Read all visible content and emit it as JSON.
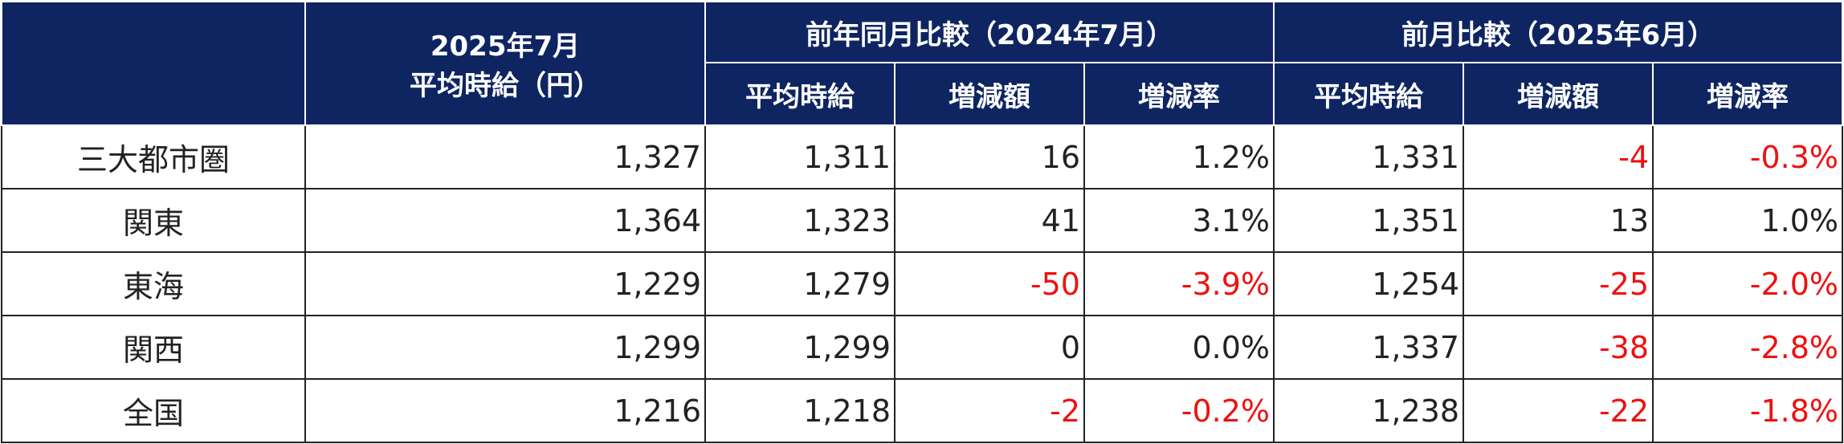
{
  "table": {
    "header": {
      "current": [
        "2025年7月",
        "平均時給（円）"
      ],
      "groups": [
        "前年同月比較（2024年7月）",
        "前月比較（2025年6月）"
      ],
      "sub": [
        "平均時給",
        "増減額",
        "増減率",
        "平均時給",
        "増減額",
        "増減率"
      ]
    },
    "rows": [
      [
        "三大都市圏",
        "1,327",
        "1,311",
        "16",
        "1.2%",
        "1,331",
        "-4",
        "-0.3%"
      ],
      [
        "関東",
        "1,364",
        "1,323",
        "41",
        "3.1%",
        "1,351",
        "13",
        "1.0%"
      ],
      [
        "東海",
        "1,229",
        "1,279",
        "-50",
        "-3.9%",
        "1,254",
        "-25",
        "-2.0%"
      ],
      [
        "関西",
        "1,299",
        "1,299",
        "0",
        "0.0%",
        "1,337",
        "-38",
        "-2.8%"
      ],
      [
        "全国",
        "1,216",
        "1,218",
        "-2",
        "-0.2%",
        "1,238",
        "-22",
        "-1.8%"
      ]
    ]
  }
}
